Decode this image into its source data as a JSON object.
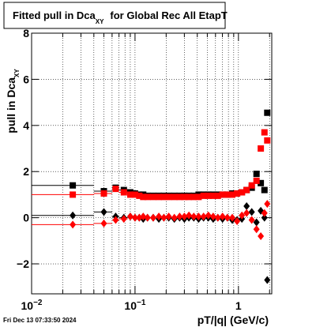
{
  "chart_data": {
    "type": "scatter",
    "title": "Fitted pull in Dca",
    "title_sub": "XY",
    "title_rest": "for Global Rec All EtapT",
    "x_label": "pT/|q| (GeV/c)",
    "y_label": "pull in Dca",
    "y_label_sub": "XY",
    "footer": "Fri Dec 13 07:33:50 2024",
    "log_x": true,
    "grid": true,
    "xlim": [
      0.01,
      2.1
    ],
    "ylim": [
      -3.3,
      8
    ],
    "xticks": [
      {
        "value": 0.01,
        "label": "10",
        "exponent": "−2"
      },
      {
        "value": 0.1,
        "label": "10",
        "exponent": "−1"
      },
      1
    ],
    "xticks_minor": [
      0.02,
      0.03,
      0.04,
      0.05,
      0.06,
      0.07,
      0.08,
      0.09,
      0.2,
      0.3,
      0.4,
      0.5,
      0.6,
      0.7,
      0.8,
      0.9,
      2
    ],
    "yticks": [
      {
        "value": -2,
        "label": "−2"
      },
      0,
      2,
      4,
      6,
      8
    ],
    "x": [
      0.025,
      0.05,
      0.065,
      0.078,
      0.09,
      0.1,
      0.11,
      0.12,
      0.132,
      0.15,
      0.17,
      0.19,
      0.212,
      0.24,
      0.27,
      0.3,
      0.332,
      0.37,
      0.412,
      0.46,
      0.512,
      0.57,
      0.632,
      0.702,
      0.782,
      0.872,
      0.97,
      1.08,
      1.2,
      1.345,
      1.495,
      1.645,
      1.785,
      1.9
    ],
    "bins": [
      0.01,
      0.04,
      0.06,
      0.07,
      0.085,
      0.095,
      0.105,
      0.115,
      0.125,
      0.14,
      0.16,
      0.18,
      0.2,
      0.225,
      0.255,
      0.285,
      0.315,
      0.35,
      0.39,
      0.435,
      0.485,
      0.54,
      0.6,
      0.665,
      0.74,
      0.825,
      0.92,
      1.02,
      1.14,
      1.27,
      1.42,
      1.57,
      1.72,
      1.85,
      1.95
    ],
    "series": [
      {
        "color": "#000000",
        "marker": "square",
        "values": [
          1.4,
          1.15,
          1.3,
          1.2,
          1.1,
          1.05,
          1.0,
          1.0,
          0.95,
          0.95,
          0.95,
          0.95,
          0.95,
          0.95,
          0.95,
          0.95,
          0.95,
          0.95,
          1.0,
          1.0,
          1.0,
          1.0,
          1.0,
          1.0,
          1.0,
          1.05,
          1.05,
          1.1,
          1.2,
          1.3,
          1.9,
          1.5,
          1.2,
          4.55
        ]
      },
      {
        "color": "#ff0000",
        "marker": "square",
        "values": [
          1.0,
          1.05,
          1.25,
          1.1,
          1.0,
          1.0,
          0.95,
          0.9,
          0.9,
          0.9,
          0.9,
          0.9,
          0.9,
          0.9,
          0.9,
          0.9,
          0.9,
          0.9,
          0.9,
          0.95,
          0.95,
          0.95,
          0.95,
          1.0,
          1.0,
          1.0,
          1.05,
          1.1,
          1.2,
          1.4,
          1.6,
          3.0,
          3.7,
          3.35
        ]
      },
      {
        "color": "#000000",
        "marker": "diamond",
        "values": [
          0.1,
          0.25,
          0.05,
          0.0,
          0.05,
          0.0,
          0.0,
          -0.05,
          0.0,
          0.0,
          -0.05,
          0.0,
          0.0,
          -0.05,
          0.0,
          -0.05,
          0.0,
          0.0,
          -0.05,
          0.0,
          0.0,
          -0.05,
          0.0,
          -0.05,
          0.0,
          -0.1,
          -0.1,
          -0.05,
          0.5,
          0.25,
          -0.2,
          0.3,
          0.0,
          -2.7
        ]
      },
      {
        "color": "#ff0000",
        "marker": "diamond",
        "values": [
          -0.3,
          -0.25,
          -0.1,
          -0.05,
          0.05,
          0.0,
          0.0,
          0.05,
          0.0,
          0.0,
          0.05,
          0.0,
          0.05,
          0.0,
          0.05,
          0.05,
          0.1,
          0.05,
          0.05,
          0.05,
          0.1,
          0.05,
          0.0,
          0.05,
          0.0,
          0.0,
          -0.15,
          0.1,
          0.2,
          -0.1,
          -0.5,
          -0.8,
          0.2,
          0.6
        ]
      }
    ]
  }
}
